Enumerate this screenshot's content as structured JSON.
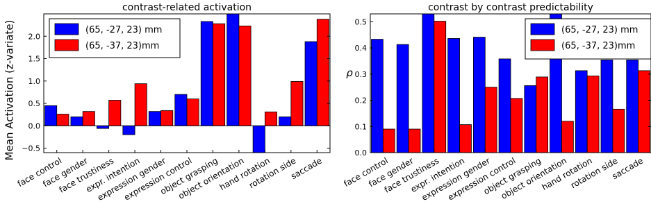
{
  "chart_data": [
    {
      "type": "bar",
      "title": "contrast-related activation",
      "xlabel": "",
      "ylabel": "Mean Activation (z-variate)",
      "ylim": [
        -0.6,
        2.5
      ],
      "yticks": [
        -0.5,
        0.0,
        0.5,
        1.0,
        1.5,
        2.0
      ],
      "ytick_labels": [
        "−0.5",
        "0.0",
        "0.5",
        "1.0",
        "1.5",
        "2.0"
      ],
      "grid": false,
      "legend_position": "top-left",
      "categories": [
        "face control",
        "face gender",
        "face trustiness",
        "expr. intention",
        "expression gender",
        "expression control",
        "object grasping",
        "object orientation",
        "hand rotation",
        "rotation side",
        "saccade"
      ],
      "series": [
        {
          "name": "(65, -27, 23) mm",
          "color": "#0000ff",
          "values": [
            0.45,
            0.2,
            -0.06,
            -0.2,
            0.32,
            0.7,
            2.33,
            2.5,
            -0.6,
            0.2,
            1.88
          ]
        },
        {
          "name": "(65, -37, 23)mm",
          "color": "#ff0000",
          "values": [
            0.26,
            0.32,
            0.57,
            0.94,
            0.34,
            0.6,
            2.28,
            2.23,
            0.31,
            0.99,
            2.38
          ]
        }
      ]
    },
    {
      "type": "bar",
      "title": "contrast by contrast predictability",
      "xlabel": "",
      "ylabel": "ρ",
      "ylim": [
        0.0,
        0.53
      ],
      "yticks": [
        0.0,
        0.1,
        0.2,
        0.3,
        0.4,
        0.5
      ],
      "ytick_labels": [
        "0.0",
        "0.1",
        "0.2",
        "0.3",
        "0.4",
        "0.5"
      ],
      "grid": false,
      "legend_position": "top-right",
      "categories": [
        "face control",
        "face gender",
        "face trustiness",
        "expr. intention",
        "expression gender",
        "expression control",
        "object grasping",
        "object orientation",
        "hand rotation",
        "rotation side",
        "saccade"
      ],
      "series": [
        {
          "name": "(65, -27, 23) mm",
          "color": "#0000ff",
          "values": [
            0.433,
            0.413,
            0.53,
            0.436,
            0.441,
            0.358,
            0.256,
            0.53,
            0.313,
            0.354,
            0.354
          ]
        },
        {
          "name": "(65, -37, 23)mm",
          "color": "#ff0000",
          "values": [
            0.09,
            0.09,
            0.502,
            0.107,
            0.25,
            0.207,
            0.289,
            0.12,
            0.293,
            0.166,
            0.313
          ]
        }
      ]
    }
  ]
}
